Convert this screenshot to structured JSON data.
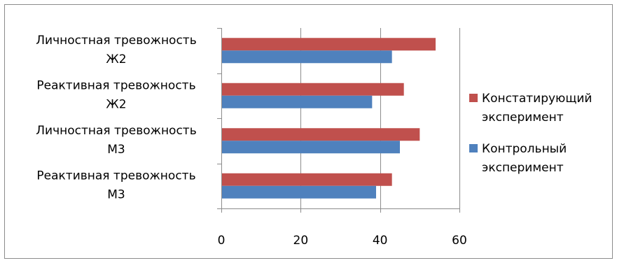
{
  "chart_data": {
    "type": "bar",
    "orientation": "horizontal",
    "categories": [
      [
        "Личностная тревожность",
        "Ж2"
      ],
      [
        "Реактивная тревожность",
        "Ж2"
      ],
      [
        "Личностная тревожность",
        "М3"
      ],
      [
        "Реактивная тревожность",
        "М3"
      ]
    ],
    "series": [
      {
        "name": [
          "Констатирующий",
          "эксперимент"
        ],
        "color": "#c0504d",
        "values": [
          54,
          46,
          50,
          43
        ]
      },
      {
        "name": [
          "Контрольный",
          "эксперимент"
        ],
        "color": "#4f81bd",
        "values": [
          43,
          38,
          45,
          39
        ]
      }
    ],
    "xlim": [
      0,
      60
    ],
    "xticks": [
      "0",
      "20",
      "40",
      "60"
    ],
    "grid": true,
    "legend": "right"
  }
}
